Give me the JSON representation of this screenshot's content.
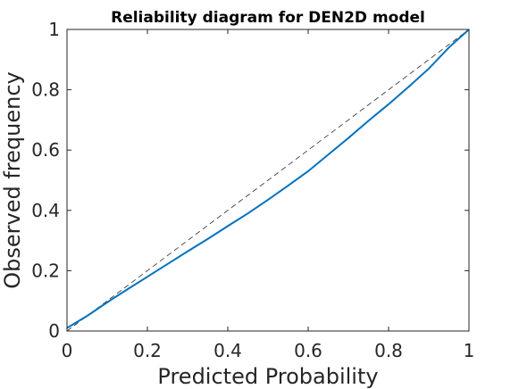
{
  "chart_data": {
    "type": "line",
    "title": "Reliability diagram for DEN2D model",
    "xlabel": "Predicted Probability",
    "ylabel": "Observed frequency",
    "xlim": [
      0,
      1
    ],
    "ylim": [
      0,
      1
    ],
    "x_ticks": [
      "0",
      "0.2",
      "0.4",
      "0.6",
      "0.8",
      "1"
    ],
    "y_ticks": [
      "0",
      "0.2",
      "0.4",
      "0.6",
      "0.8",
      "1"
    ],
    "x_tick_values": [
      0,
      0.2,
      0.4,
      0.6,
      0.8,
      1
    ],
    "y_tick_values": [
      0,
      0.2,
      0.4,
      0.6,
      0.8,
      1
    ],
    "grid": false,
    "series": [
      {
        "style": "solid",
        "color": "#0072bd",
        "x": [
          0,
          0.05,
          0.1,
          0.15,
          0.2,
          0.25,
          0.3,
          0.35,
          0.4,
          0.45,
          0.5,
          0.55,
          0.6,
          0.65,
          0.7,
          0.75,
          0.8,
          0.85,
          0.9,
          0.95,
          1.0
        ],
        "y": [
          0.01,
          0.05,
          0.095,
          0.138,
          0.18,
          0.222,
          0.264,
          0.305,
          0.348,
          0.39,
          0.435,
          0.482,
          0.53,
          0.585,
          0.64,
          0.697,
          0.752,
          0.81,
          0.87,
          0.94,
          1.0
        ]
      },
      {
        "style": "dashed",
        "color": "#404040",
        "x": [
          0,
          1
        ],
        "y": [
          0,
          1
        ]
      }
    ]
  }
}
